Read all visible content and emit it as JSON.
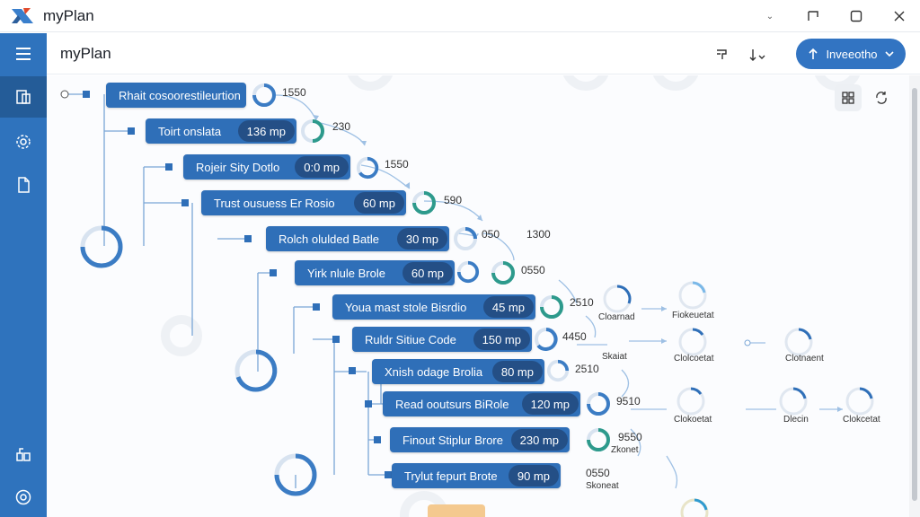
{
  "window": {
    "title": "myPlan"
  },
  "header": {
    "title": "myPlan",
    "primary_button": "Inveeotho"
  },
  "tasks": [
    {
      "label": "Rhait cosoorestileurtion",
      "duration": "",
      "value": "1550"
    },
    {
      "label": "Toirt onslata",
      "duration": "136 mp",
      "value": "230"
    },
    {
      "label": "Rojeir Sity Dotlo",
      "duration": "0:0 mp",
      "value": "1550"
    },
    {
      "label": "Trust ousuess Er Rosio",
      "duration": "60 mp",
      "value": "590"
    },
    {
      "label": "Rolch olulded Batle",
      "duration": "30 mp",
      "value": "050"
    },
    {
      "label": "Yirk nlule Brole",
      "duration": "60 mp",
      "value": "0550"
    },
    {
      "label": "Youa mast stole Bisrdio",
      "duration": "45 mp",
      "value": "2510"
    },
    {
      "label": "Ruldr Sitiue Code",
      "duration": "150 mp",
      "value": "4450"
    },
    {
      "label": "Xnish odage Brolia",
      "duration": "80 mp",
      "value": "2510"
    },
    {
      "label": "Read ooutsurs BiRole",
      "duration": "120 mp",
      "value": "9510"
    },
    {
      "label": "Finout Stiplur Brore",
      "duration": "230 mp",
      "value": "9550"
    },
    {
      "label": "Trylut fepurt Brote",
      "duration": "90 mp",
      "value": "0550"
    }
  ],
  "extra_values": {
    "v1300": "1300"
  },
  "nodes": [
    {
      "label": "Cloarnad"
    },
    {
      "label": "Fiokeuetat"
    },
    {
      "label": "Skaiat"
    },
    {
      "label": "Clolcoetat"
    },
    {
      "label": "Clotnaent"
    },
    {
      "label": "Clokoetat"
    },
    {
      "label": "Dlecin"
    },
    {
      "label": "Clokcetat"
    },
    {
      "label": "Zkonet"
    },
    {
      "label": "Skoneat"
    }
  ],
  "icons": {
    "rail": [
      "menu-icon",
      "projects-icon",
      "settings-gear-icon",
      "document-icon",
      "team-icon",
      "preferences-icon"
    ],
    "appbar": [
      "pin-icon",
      "sort-icon"
    ],
    "view": [
      "grid-view-icon",
      "refresh-icon"
    ]
  },
  "colors": {
    "accent": "#2f73bd",
    "task": "#2f6fb8",
    "task_duration": "#244f86",
    "ring": "#3b7cc4",
    "ring_track": "#d8e3f0"
  }
}
